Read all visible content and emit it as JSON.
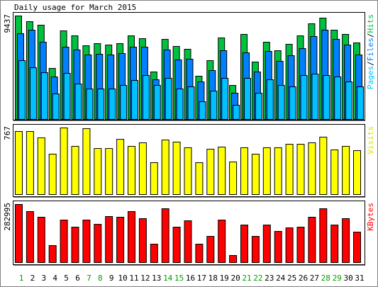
{
  "chart_data": [
    {
      "type": "bar",
      "title": "Daily usage for March 2015",
      "categories": [
        "1",
        "2",
        "3",
        "4",
        "5",
        "6",
        "7",
        "8",
        "9",
        "10",
        "11",
        "12",
        "13",
        "14",
        "15",
        "16",
        "17",
        "18",
        "19",
        "20",
        "21",
        "22",
        "23",
        "24",
        "25",
        "26",
        "27",
        "28",
        "29",
        "30",
        "31"
      ],
      "category_colors": [
        "#00a000",
        "#000000",
        "#000000",
        "#000000",
        "#000000",
        "#000000",
        "#00a000",
        "#00a000",
        "#000000",
        "#000000",
        "#000000",
        "#000000",
        "#000000",
        "#00a000",
        "#00a000",
        "#000000",
        "#000000",
        "#000000",
        "#000000",
        "#000000",
        "#00a000",
        "#00a000",
        "#000000",
        "#000000",
        "#000000",
        "#000000",
        "#000000",
        "#00a000",
        "#00a000",
        "#000000",
        "#000000"
      ],
      "legend_separator": "/",
      "ylim": [
        0,
        9437
      ],
      "yticks": [
        9437
      ],
      "series": [
        {
          "name": "Pages",
          "color": "#00c0ff",
          "values": [
            5365,
            4719,
            4266,
            2327,
            4201,
            3232,
            2779,
            2779,
            2779,
            3103,
            3555,
            4008,
            3103,
            3749,
            2779,
            2973,
            1616,
            2585,
            3749,
            1293,
            3749,
            2392,
            3620,
            3103,
            2973,
            4008,
            4137,
            4008,
            3878,
            3426,
            2973
          ]
        },
        {
          "name": "Files",
          "color": "#0080ff",
          "values": [
            7821,
            8144,
            7045,
            3878,
            6593,
            6335,
            5882,
            5947,
            5882,
            6011,
            6593,
            6593,
            3620,
            6335,
            5430,
            5494,
            3426,
            4460,
            6270,
            2392,
            6076,
            4331,
            6205,
            5300,
            5817,
            6464,
            7563,
            8144,
            7304,
            6787,
            5882
          ]
        },
        {
          "name": "Hits",
          "color": "#00c040",
          "values": [
            9437,
            8920,
            8597,
            4654,
            8080,
            7627,
            6722,
            6916,
            6787,
            6916,
            7627,
            7369,
            4331,
            7304,
            6658,
            6399,
            3943,
            5365,
            7433,
            3103,
            7757,
            5236,
            7045,
            6270,
            6852,
            7627,
            8726,
            9243,
            8144,
            7757,
            6981
          ]
        }
      ]
    },
    {
      "type": "bar",
      "ylim": [
        0,
        767
      ],
      "yticks": [
        767
      ],
      "series": [
        {
          "name": "Visits",
          "color": "#ffff00",
          "values": [
            726,
            726,
            653,
            465,
            767,
            555,
            759,
            530,
            530,
            636,
            555,
            596,
            367,
            628,
            604,
            539,
            367,
            522,
            547,
            375,
            539,
            465,
            539,
            539,
            579,
            579,
            596,
            661,
            514,
            555,
            506
          ]
        }
      ]
    },
    {
      "type": "bar",
      "ylim": [
        0,
        282995
      ],
      "yticks": [
        282995
      ],
      "series": [
        {
          "name": "KBytes",
          "color": "#ff0000",
          "values": [
            282995,
            248472,
            220864,
            82824,
            207060,
            172550,
            207060,
            186354,
            224315,
            220864,
            248472,
            213962,
            89726,
            262276,
            172550,
            203609,
            89726,
            127687,
            207060,
            34510,
            182903,
            127687,
            182903,
            151844,
            169099,
            172550,
            220864,
            262276,
            182903,
            213962,
            148393
          ]
        }
      ]
    }
  ]
}
